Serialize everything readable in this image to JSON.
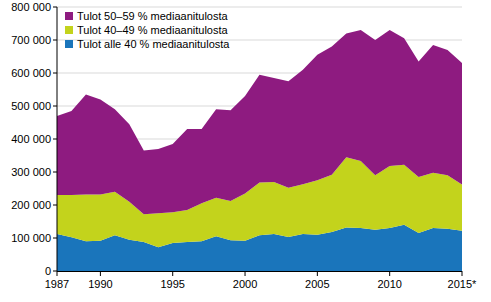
{
  "chart_data": {
    "type": "area",
    "stacked": true,
    "x": [
      1987,
      1988,
      1989,
      1990,
      1991,
      1992,
      1993,
      1994,
      1995,
      1996,
      1997,
      1998,
      1999,
      2000,
      2001,
      2002,
      2003,
      2004,
      2005,
      2006,
      2007,
      2008,
      2009,
      2010,
      2011,
      2012,
      2013,
      2014,
      2015
    ],
    "series": [
      {
        "name": "Tulot alle 40 % mediaanitulosta",
        "color": "#1a75bb",
        "values": [
          112000,
          102000,
          90000,
          92000,
          108000,
          95000,
          88000,
          72000,
          85000,
          88000,
          90000,
          105000,
          93000,
          92000,
          108000,
          112000,
          103000,
          112000,
          110000,
          118000,
          132000,
          130000,
          125000,
          130000,
          140000,
          115000,
          130000,
          128000,
          122000
        ]
      },
      {
        "name": "Tulot 40–49 % mediaanitulosta",
        "color": "#c3d31c",
        "values": [
          118000,
          128000,
          142000,
          140000,
          132000,
          115000,
          84000,
          103000,
          93000,
          97000,
          115000,
          117000,
          119000,
          143000,
          160000,
          158000,
          149000,
          151000,
          165000,
          174000,
          213000,
          203000,
          165000,
          188000,
          182000,
          170000,
          168000,
          162000,
          140000
        ]
      },
      {
        "name": "Tulot 50–59 % mediaanitulosta",
        "color": "#8e1b80",
        "values": [
          240000,
          255000,
          303000,
          288000,
          250000,
          235000,
          193000,
          195000,
          207000,
          245000,
          225000,
          268000,
          275000,
          295000,
          327000,
          315000,
          323000,
          347000,
          380000,
          388000,
          375000,
          397000,
          410000,
          412000,
          383000,
          350000,
          387000,
          380000,
          368000
        ]
      }
    ],
    "xlim": [
      1987,
      2015
    ],
    "xticks": [
      1987,
      1990,
      1995,
      2000,
      2005,
      2010,
      {
        "value": 2015,
        "label": "2015*"
      }
    ],
    "ylim": [
      0,
      800000
    ],
    "yticks": [
      0,
      {
        "value": 100000,
        "label": "100 000"
      },
      {
        "value": 200000,
        "label": "200 000"
      },
      {
        "value": 300000,
        "label": "300 000"
      },
      {
        "value": 400000,
        "label": "400 000"
      },
      {
        "value": 500000,
        "label": "500 000"
      },
      {
        "value": 600000,
        "label": "600 000"
      },
      {
        "value": 700000,
        "label": "700 000"
      },
      {
        "value": 800000,
        "label": "800 000"
      }
    ],
    "grid": true,
    "legend": "top-left"
  }
}
